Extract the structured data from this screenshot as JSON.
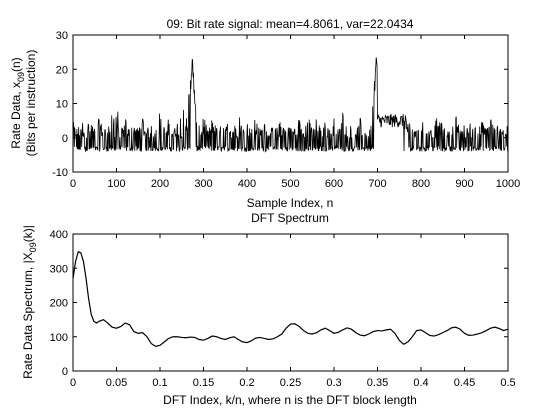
{
  "chart_data": [
    {
      "type": "line",
      "title": "09: Bit rate signal: mean=4.8061, var=22.0434",
      "xlabel": "Sample Index, n",
      "ylabel_line1_main": "Rate Data, x",
      "ylabel_line1_sub": "09",
      "ylabel_line1_tail": "(n)",
      "ylabel_line2": "(Bits per instruction)",
      "xlim": [
        0,
        1000
      ],
      "ylim": [
        -5,
        30
      ],
      "xticks": [
        "0",
        "100",
        "200",
        "300",
        "400",
        "500",
        "600",
        "700",
        "800",
        "900",
        "1000"
      ],
      "yticks": [
        "-10",
        "0",
        "10",
        "20",
        "30"
      ],
      "grid": false,
      "series": [
        {
          "color": "#000000",
          "summary": "Noisy bit rate signal, mostly between -5 and 10 with spikes near n=275 (~22) and n=698 (~23)",
          "x": [
            0,
            20,
            40,
            60,
            80,
            100,
            120,
            140,
            160,
            170,
            180,
            200,
            220,
            240,
            260,
            270,
            275,
            280,
            290,
            300,
            320,
            340,
            360,
            380,
            400,
            420,
            440,
            460,
            480,
            500,
            520,
            540,
            560,
            580,
            600,
            620,
            640,
            660,
            680,
            690,
            698,
            705,
            720,
            740,
            760,
            780,
            800,
            820,
            840,
            860,
            880,
            900,
            920,
            940,
            960,
            980,
            1000
          ],
          "y": [
            3,
            -4,
            5,
            -4,
            2,
            8,
            -4,
            3,
            -5,
            2,
            -4,
            6,
            -4,
            3,
            9,
            15,
            22,
            9,
            -4,
            5,
            -4,
            2,
            -4,
            6,
            -3,
            4,
            -4,
            2,
            -4,
            3,
            -4,
            5,
            -4,
            3,
            -5,
            6,
            -4,
            4,
            -4,
            10,
            23,
            9,
            5,
            3,
            6,
            2,
            5,
            -4,
            6,
            -4,
            5,
            -3,
            6,
            -4,
            5,
            -4,
            4
          ]
        }
      ]
    },
    {
      "type": "line",
      "title": "DFT Spectrum",
      "xlabel": "DFT Index, k/n, where n is the DFT block length",
      "ylabel_main": "Rate Data Spectrum, |X",
      "ylabel_sub": "09",
      "ylabel_tail": "(k)|",
      "xlim": [
        0,
        0.5
      ],
      "ylim": [
        0,
        400
      ],
      "xticks": [
        "0",
        "0.05",
        "0.1",
        "0.15",
        "0.2",
        "0.25",
        "0.3",
        "0.35",
        "0.4",
        "0.45",
        "0.5"
      ],
      "yticks": [
        "0",
        "100",
        "200",
        "300",
        "400"
      ],
      "grid": false,
      "series": [
        {
          "color": "#000000",
          "x": [
            0,
            0.003,
            0.006,
            0.009,
            0.012,
            0.015,
            0.018,
            0.021,
            0.024,
            0.027,
            0.03,
            0.035,
            0.04,
            0.045,
            0.05,
            0.055,
            0.06,
            0.065,
            0.07,
            0.075,
            0.08,
            0.085,
            0.09,
            0.095,
            0.1,
            0.105,
            0.11,
            0.115,
            0.12,
            0.125,
            0.13,
            0.135,
            0.14,
            0.145,
            0.15,
            0.155,
            0.16,
            0.165,
            0.17,
            0.175,
            0.18,
            0.185,
            0.19,
            0.195,
            0.2,
            0.205,
            0.21,
            0.215,
            0.22,
            0.225,
            0.23,
            0.235,
            0.24,
            0.245,
            0.25,
            0.255,
            0.26,
            0.265,
            0.27,
            0.275,
            0.28,
            0.285,
            0.29,
            0.295,
            0.3,
            0.305,
            0.31,
            0.315,
            0.32,
            0.325,
            0.33,
            0.335,
            0.34,
            0.345,
            0.35,
            0.355,
            0.36,
            0.365,
            0.37,
            0.375,
            0.38,
            0.385,
            0.39,
            0.395,
            0.4,
            0.405,
            0.41,
            0.415,
            0.42,
            0.425,
            0.43,
            0.435,
            0.44,
            0.445,
            0.45,
            0.455,
            0.46,
            0.465,
            0.47,
            0.475,
            0.48,
            0.485,
            0.49,
            0.495,
            0.5
          ],
          "y": [
            270,
            320,
            348,
            345,
            320,
            270,
            210,
            165,
            145,
            140,
            145,
            150,
            140,
            128,
            125,
            130,
            140,
            135,
            115,
            110,
            112,
            100,
            80,
            72,
            75,
            85,
            95,
            100,
            100,
            98,
            97,
            99,
            98,
            92,
            90,
            95,
            102,
            100,
            95,
            92,
            97,
            100,
            92,
            85,
            83,
            88,
            96,
            98,
            95,
            92,
            94,
            100,
            108,
            125,
            137,
            138,
            130,
            118,
            110,
            108,
            112,
            120,
            125,
            118,
            110,
            113,
            120,
            126,
            122,
            112,
            105,
            103,
            108,
            115,
            118,
            117,
            120,
            122,
            110,
            90,
            78,
            85,
            100,
            118,
            120,
            112,
            104,
            102,
            106,
            112,
            118,
            126,
            128,
            122,
            110,
            104,
            105,
            108,
            112,
            118,
            125,
            128,
            124,
            118,
            122
          ]
        }
      ]
    }
  ]
}
